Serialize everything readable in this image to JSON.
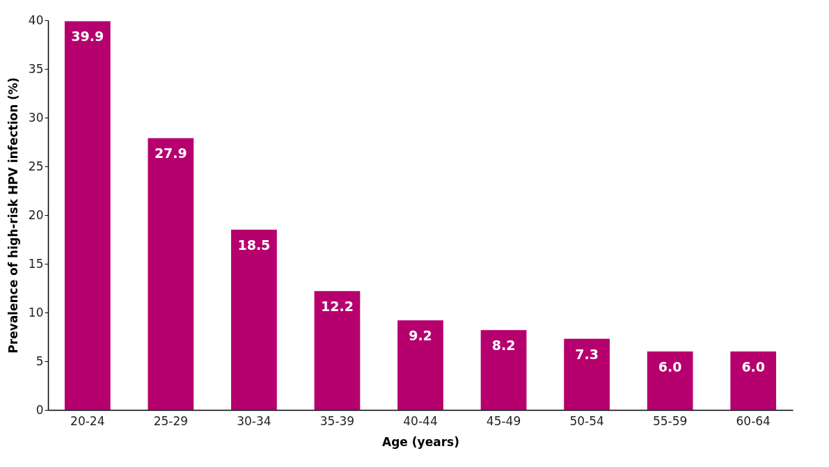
{
  "chart_data": {
    "type": "bar",
    "xlabel": "Age (years)",
    "ylabel": "Prevalence of high-risk HPV infection (%)",
    "categories": [
      "20-24",
      "25-29",
      "30-34",
      "35-39",
      "40-44",
      "45-49",
      "50-54",
      "55-59",
      "60-64"
    ],
    "values": [
      39.9,
      27.9,
      18.5,
      12.2,
      9.2,
      8.2,
      7.3,
      6.0,
      6.0
    ],
    "value_labels": [
      "39.9",
      "27.9",
      "18.5",
      "12.2",
      "9.2",
      "8.2",
      "7.3",
      "6.0",
      "6.0"
    ],
    "color": "#b5006e",
    "ylim": [
      0,
      40
    ],
    "yticks": [
      0,
      5,
      10,
      15,
      20,
      25,
      30,
      35,
      40
    ]
  }
}
